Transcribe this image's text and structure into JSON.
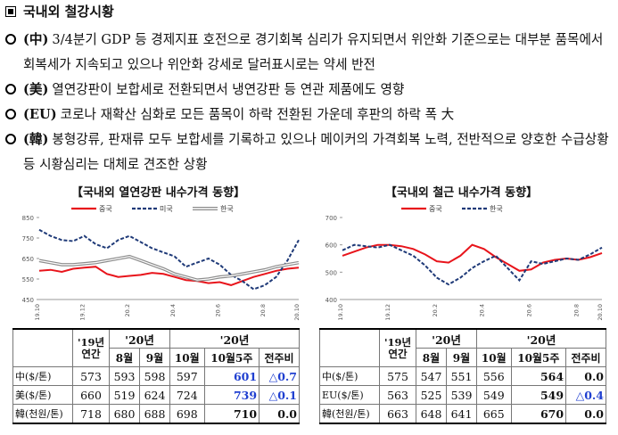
{
  "header": {
    "title": "국내외 철강시황"
  },
  "bullets": [
    {
      "tag": "(中)",
      "text": "3/4분기 GDP 등 경제지표 호전으로 경기회복 심리가 유지되면서 위안화 기준으로는 대부분 품목에서 회복세가 지속되고 있으나 위안화 강세로 달러표시로는 약세 반전"
    },
    {
      "tag": "(美)",
      "text": "열연강판이 보합세로 전환되면서 냉연강판 등 연관 제품에도 영향"
    },
    {
      "tag": "(EU)",
      "text": "코로나 재확산 심화로 모든 품목이 하락 전환된 가운데 후판의 하락 폭 大"
    },
    {
      "tag": "(韓)",
      "text": "봉형강류, 판재류 모두 보합세를 기록하고 있으나 메이커의 가격회복 노력, 전반적으로 양호한 수급상황 등 시황심리는 대체로 견조한 상황"
    }
  ],
  "chart_data": [
    {
      "type": "line",
      "title": "【국내외 열연강판 내수가격 동향】",
      "categories": [
        "19.10",
        null,
        null,
        null,
        "19.12",
        null,
        null,
        null,
        "20.2",
        null,
        null,
        null,
        "20.4",
        null,
        null,
        null,
        "20.6",
        null,
        null,
        null,
        "20.8",
        null,
        null,
        "20.10"
      ],
      "series": [
        {
          "name": "중국",
          "color": "#e8141b",
          "style": "solid",
          "values": [
            590,
            595,
            585,
            600,
            605,
            610,
            575,
            560,
            565,
            570,
            580,
            575,
            560,
            545,
            540,
            530,
            535,
            520,
            540,
            560,
            575,
            590,
            600,
            605
          ]
        },
        {
          "name": "미국",
          "color": "#1f3a78",
          "style": "dashed",
          "values": [
            790,
            760,
            740,
            735,
            760,
            720,
            700,
            740,
            760,
            730,
            700,
            680,
            660,
            610,
            630,
            650,
            620,
            570,
            540,
            500,
            520,
            560,
            640,
            740
          ]
        },
        {
          "name": "한국",
          "color": "#8c8c8c",
          "style": "double",
          "values": [
            640,
            630,
            620,
            620,
            625,
            630,
            640,
            650,
            660,
            640,
            620,
            600,
            575,
            560,
            545,
            550,
            560,
            565,
            575,
            585,
            595,
            610,
            620,
            630
          ]
        }
      ],
      "ylim": [
        450,
        850
      ],
      "yticks": [
        450,
        550,
        650,
        750,
        850
      ],
      "grid": false
    },
    {
      "type": "line",
      "title": "【국내외 철근 내수가격 동향】",
      "categories": [
        "19.10",
        null,
        null,
        null,
        "19.12",
        null,
        null,
        null,
        "20.2",
        null,
        null,
        null,
        "20.4",
        null,
        null,
        null,
        "20.6",
        null,
        null,
        null,
        "20.8",
        null,
        "20.10"
      ],
      "series": [
        {
          "name": "중국",
          "color": "#e8141b",
          "style": "solid",
          "values": [
            560,
            575,
            590,
            600,
            600,
            595,
            585,
            565,
            540,
            535,
            560,
            600,
            585,
            555,
            530,
            505,
            510,
            535,
            545,
            550,
            545,
            555,
            570
          ]
        },
        {
          "name": "한국",
          "color": "#1f3a78",
          "style": "dashed",
          "values": [
            580,
            600,
            595,
            590,
            600,
            580,
            560,
            525,
            480,
            455,
            480,
            515,
            540,
            560,
            515,
            470,
            540,
            530,
            540,
            550,
            545,
            565,
            590
          ]
        }
      ],
      "ylim": [
        400,
        700
      ],
      "yticks": [
        400,
        500,
        600,
        700
      ],
      "grid": false
    }
  ],
  "tables": [
    {
      "head": [
        "'19년 연간",
        "'20년",
        "'20년"
      ],
      "subhead": [
        "8월",
        "9월",
        "10월",
        "10월5주",
        "전주비"
      ],
      "rows": [
        [
          "中($/톤)",
          573,
          593,
          598,
          597,
          601,
          "△0.7"
        ],
        [
          "美($/톤)",
          660,
          519,
          624,
          724,
          739,
          "△0.1"
        ],
        [
          "韓(천원/톤)",
          718,
          680,
          688,
          698,
          710,
          "0.0"
        ]
      ],
      "highlight_color": "#1f3fd0",
      "highlight_cells": [
        [
          0,
          5
        ],
        [
          0,
          6
        ],
        [
          1,
          5
        ],
        [
          1,
          6
        ]
      ]
    },
    {
      "head": [
        "'19년 연간",
        "'20년",
        "'20년"
      ],
      "subhead": [
        "8월",
        "9월",
        "10월",
        "10월5주",
        "전주비"
      ],
      "rows": [
        [
          "中($/톤)",
          575,
          547,
          551,
          556,
          564,
          "0.0"
        ],
        [
          "EU($/톤)",
          563,
          525,
          539,
          549,
          549,
          "△0.4"
        ],
        [
          "韓(천원/톤)",
          663,
          648,
          641,
          665,
          670,
          "0.0"
        ]
      ],
      "highlight_color": "#1f3fd0",
      "highlight_cells": [
        [
          1,
          6
        ]
      ]
    }
  ]
}
